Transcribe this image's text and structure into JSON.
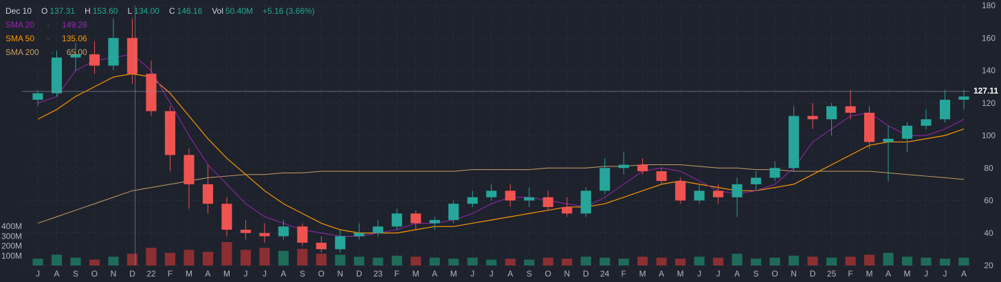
{
  "legend": {
    "date": "Dec 10",
    "open_label": "O",
    "open": "137.31",
    "high_label": "H",
    "high": "153.60",
    "low_label": "L",
    "low": "134.00",
    "close_label": "C",
    "close": "146.16",
    "vol_label": "Vol",
    "vol": "50.40M",
    "change": "+5.16 (3.66%)",
    "sma": [
      {
        "label": "SMA 20",
        "value": "149.28"
      },
      {
        "label": "SMA 50",
        "value": "135.06"
      },
      {
        "label": "SMA 200",
        "value": "65.00"
      }
    ]
  },
  "last_price": "127.11",
  "colors": {
    "background": "#1e222d",
    "grid": "#2a2e39",
    "up": "#26a69a",
    "down": "#ef5350",
    "sma20": "#9c27b0",
    "sma50": "#ff9800",
    "sma200": "#c8a064"
  },
  "chart_data": {
    "type": "candlestick",
    "y_ticks": [
      20,
      40,
      60,
      80,
      100,
      120,
      140,
      160,
      180
    ],
    "ylim": [
      20,
      180
    ],
    "volume_ticks": [
      "100M",
      "200M",
      "300M",
      "400M"
    ],
    "x_ticks": [
      "J",
      "A",
      "S",
      "O",
      "N",
      "D",
      "22",
      "F",
      "M",
      "A",
      "M",
      "J",
      "J",
      "A",
      "S",
      "O",
      "N",
      "D",
      "23",
      "F",
      "M",
      "A",
      "M",
      "J",
      "J",
      "A",
      "S",
      "O",
      "N",
      "D",
      "24",
      "F",
      "M",
      "A",
      "M",
      "J",
      "J",
      "A",
      "S",
      "O",
      "N",
      "D",
      "25",
      "F",
      "M",
      "A",
      "M",
      "J",
      "J",
      "A"
    ],
    "crosshair_x_index": 5,
    "crosshair_price": 127.11,
    "candles_monthly": [
      {
        "m": "J",
        "o": 122,
        "h": 128,
        "l": 118,
        "c": 126
      },
      {
        "m": "A",
        "o": 126,
        "h": 152,
        "l": 124,
        "c": 148
      },
      {
        "m": "S",
        "o": 148,
        "h": 157,
        "l": 140,
        "c": 150
      },
      {
        "m": "O",
        "o": 150,
        "h": 158,
        "l": 138,
        "c": 143
      },
      {
        "m": "N",
        "o": 143,
        "h": 172,
        "l": 140,
        "c": 160
      },
      {
        "m": "D",
        "o": 160,
        "h": 172,
        "l": 132,
        "c": 138
      },
      {
        "m": "22",
        "o": 138,
        "h": 146,
        "l": 112,
        "c": 115
      },
      {
        "m": "F",
        "o": 115,
        "h": 118,
        "l": 78,
        "c": 88
      },
      {
        "m": "M",
        "o": 88,
        "h": 92,
        "l": 55,
        "c": 70
      },
      {
        "m": "A",
        "o": 70,
        "h": 82,
        "l": 52,
        "c": 58
      },
      {
        "m": "M",
        "o": 58,
        "h": 62,
        "l": 38,
        "c": 42
      },
      {
        "m": "J",
        "o": 42,
        "h": 48,
        "l": 36,
        "c": 40
      },
      {
        "m": "J",
        "o": 40,
        "h": 46,
        "l": 34,
        "c": 38
      },
      {
        "m": "A",
        "o": 38,
        "h": 48,
        "l": 36,
        "c": 44
      },
      {
        "m": "S",
        "o": 44,
        "h": 46,
        "l": 32,
        "c": 34
      },
      {
        "m": "O",
        "o": 34,
        "h": 38,
        "l": 28,
        "c": 30
      },
      {
        "m": "N",
        "o": 30,
        "h": 42,
        "l": 28,
        "c": 38
      },
      {
        "m": "D",
        "o": 38,
        "h": 46,
        "l": 36,
        "c": 40
      },
      {
        "m": "23",
        "o": 40,
        "h": 48,
        "l": 38,
        "c": 44
      },
      {
        "m": "F",
        "o": 44,
        "h": 55,
        "l": 42,
        "c": 52
      },
      {
        "m": "M",
        "o": 52,
        "h": 54,
        "l": 42,
        "c": 46
      },
      {
        "m": "A",
        "o": 46,
        "h": 50,
        "l": 42,
        "c": 48
      },
      {
        "m": "M",
        "o": 48,
        "h": 60,
        "l": 46,
        "c": 58
      },
      {
        "m": "J",
        "o": 58,
        "h": 66,
        "l": 56,
        "c": 62
      },
      {
        "m": "J",
        "o": 62,
        "h": 70,
        "l": 60,
        "c": 66
      },
      {
        "m": "A",
        "o": 66,
        "h": 70,
        "l": 56,
        "c": 60
      },
      {
        "m": "S",
        "o": 60,
        "h": 68,
        "l": 56,
        "c": 62
      },
      {
        "m": "O",
        "o": 62,
        "h": 66,
        "l": 54,
        "c": 56
      },
      {
        "m": "N",
        "o": 56,
        "h": 62,
        "l": 50,
        "c": 52
      },
      {
        "m": "D",
        "o": 52,
        "h": 68,
        "l": 50,
        "c": 66
      },
      {
        "m": "24",
        "o": 66,
        "h": 86,
        "l": 64,
        "c": 80
      },
      {
        "m": "F",
        "o": 80,
        "h": 90,
        "l": 76,
        "c": 82
      },
      {
        "m": "M",
        "o": 82,
        "h": 86,
        "l": 76,
        "c": 78
      },
      {
        "m": "A",
        "o": 78,
        "h": 80,
        "l": 70,
        "c": 72
      },
      {
        "m": "M",
        "o": 72,
        "h": 74,
        "l": 58,
        "c": 60
      },
      {
        "m": "J",
        "o": 60,
        "h": 70,
        "l": 58,
        "c": 66
      },
      {
        "m": "J",
        "o": 66,
        "h": 70,
        "l": 58,
        "c": 62
      },
      {
        "m": "A",
        "o": 62,
        "h": 74,
        "l": 50,
        "c": 70
      },
      {
        "m": "S",
        "o": 70,
        "h": 78,
        "l": 66,
        "c": 74
      },
      {
        "m": "O",
        "o": 74,
        "h": 84,
        "l": 72,
        "c": 80
      },
      {
        "m": "N",
        "o": 80,
        "h": 118,
        "l": 78,
        "c": 112
      },
      {
        "m": "D",
        "o": 112,
        "h": 120,
        "l": 104,
        "c": 110
      },
      {
        "m": "25",
        "o": 110,
        "h": 120,
        "l": 100,
        "c": 118
      },
      {
        "m": "F",
        "o": 118,
        "h": 128,
        "l": 110,
        "c": 114
      },
      {
        "m": "M",
        "o": 114,
        "h": 118,
        "l": 92,
        "c": 96
      },
      {
        "m": "A",
        "o": 96,
        "h": 106,
        "l": 72,
        "c": 98
      },
      {
        "m": "M",
        "o": 98,
        "h": 108,
        "l": 90,
        "c": 106
      },
      {
        "m": "J",
        "o": 106,
        "h": 116,
        "l": 104,
        "c": 110
      },
      {
        "m": "J",
        "o": 110,
        "h": 128,
        "l": 108,
        "c": 122
      },
      {
        "m": "A",
        "o": 122,
        "h": 128,
        "l": 116,
        "c": 124
      }
    ],
    "sma20": [
      120,
      124,
      140,
      146,
      148,
      150,
      140,
      120,
      100,
      82,
      70,
      58,
      50,
      46,
      42,
      40,
      38,
      38,
      40,
      42,
      46,
      46,
      48,
      52,
      58,
      62,
      62,
      60,
      58,
      56,
      62,
      70,
      78,
      80,
      78,
      72,
      66,
      64,
      66,
      70,
      80,
      96,
      104,
      112,
      114,
      106,
      100,
      100,
      104,
      110
    ],
    "sma50": [
      110,
      116,
      124,
      130,
      136,
      138,
      136,
      126,
      112,
      98,
      86,
      76,
      66,
      58,
      52,
      46,
      42,
      40,
      40,
      40,
      42,
      44,
      44,
      46,
      48,
      50,
      52,
      54,
      56,
      56,
      58,
      62,
      66,
      70,
      72,
      70,
      68,
      66,
      66,
      68,
      70,
      76,
      82,
      88,
      94,
      96,
      96,
      98,
      100,
      104
    ],
    "sma200": [
      46,
      50,
      54,
      58,
      62,
      66,
      68,
      70,
      72,
      74,
      75,
      76,
      76,
      77,
      77,
      78,
      78,
      78,
      78,
      78,
      78,
      78,
      78,
      79,
      79,
      79,
      79,
      80,
      80,
      80,
      81,
      81,
      82,
      82,
      82,
      81,
      80,
      80,
      79,
      79,
      78,
      78,
      78,
      78,
      78,
      77,
      76,
      75,
      74,
      73
    ],
    "volume": [
      70,
      110,
      80,
      60,
      90,
      120,
      180,
      130,
      160,
      140,
      240,
      160,
      180,
      150,
      170,
      120,
      110,
      90,
      80,
      100,
      90,
      80,
      70,
      80,
      60,
      70,
      60,
      80,
      70,
      90,
      80,
      70,
      90,
      80,
      70,
      90,
      80,
      120,
      70,
      80,
      100,
      90,
      80,
      90,
      110,
      130,
      90,
      80,
      70,
      80
    ]
  }
}
